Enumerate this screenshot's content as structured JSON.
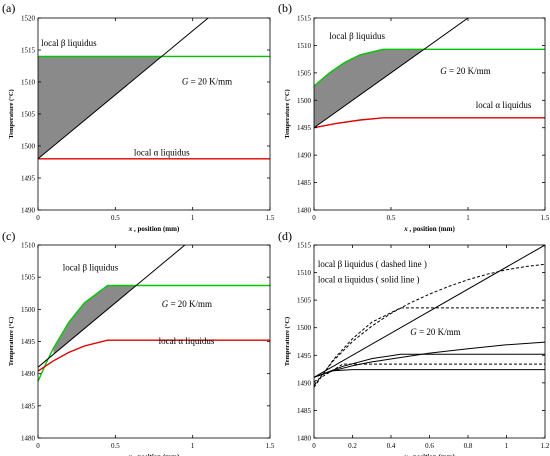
{
  "chart_data": [
    {
      "panel": "(a)",
      "type": "line",
      "ylabel": "Temperature (°C)",
      "xlabel": {
        "var": "x",
        "rest": ", position (mm)"
      },
      "xlim": [
        0,
        1.5
      ],
      "ylim": [
        1490,
        1520
      ],
      "xticks": [
        "0",
        "0.5",
        "1",
        "1.5"
      ],
      "yticks": [
        "1490",
        "1495",
        "1500",
        "1505",
        "1510",
        "1515",
        "1520"
      ],
      "annotations": [
        {
          "text": "local β liquidus",
          "x": 0.02,
          "y": 1515.6
        },
        {
          "text": "= 20 K/mm",
          "italic_prefix": "G",
          "x": 0.93,
          "y": 1509.6
        },
        {
          "text": "local α liquidus",
          "x": 0.62,
          "y": 1498.5
        }
      ],
      "series": [
        {
          "color": "#00c800",
          "x": [
            0,
            1.5
          ],
          "y": [
            1514,
            1514
          ]
        },
        {
          "color": "#e00000",
          "x": [
            0,
            1.5
          ],
          "y": [
            1498,
            1498
          ]
        },
        {
          "color": "#000000",
          "x": [
            0,
            1.5
          ],
          "y": [
            1498,
            1528
          ]
        }
      ],
      "shaded_region": {
        "color": "#8a8a8a",
        "x": [
          0,
          0.8,
          0
        ],
        "y": [
          1514,
          1514,
          1498
        ]
      }
    },
    {
      "panel": "(b)",
      "type": "line",
      "ylabel": "Temperature (°C)",
      "xlabel": {
        "var": "x",
        "rest": ", position (mm)"
      },
      "xlim": [
        0,
        1.5
      ],
      "ylim": [
        1480,
        1515
      ],
      "xticks": [
        "0",
        "0.5",
        "1",
        "1.5"
      ],
      "yticks": [
        "1480",
        "1485",
        "1490",
        "1495",
        "1500",
        "1505",
        "1510",
        "1515"
      ],
      "annotations": [
        {
          "text": "local β liquidus",
          "x": 0.1,
          "y": 1511.2
        },
        {
          "text": "= 20 K/mm",
          "italic_prefix": "G",
          "x": 0.82,
          "y": 1504.8
        },
        {
          "text": "local α liquidus",
          "x": 1.05,
          "y": 1498.6
        }
      ],
      "series": [
        {
          "color": "#00c800",
          "x": [
            0,
            0.1,
            0.2,
            0.3,
            0.45,
            1.5
          ],
          "y": [
            1502.6,
            1505.0,
            1506.9,
            1508.3,
            1509.3,
            1509.3
          ]
        },
        {
          "color": "#e00000",
          "x": [
            0,
            0.15,
            0.3,
            0.45,
            1.5
          ],
          "y": [
            1495.0,
            1495.8,
            1496.4,
            1496.8,
            1496.8
          ]
        },
        {
          "color": "#000000",
          "x": [
            0,
            1.5
          ],
          "y": [
            1495,
            1525
          ]
        }
      ],
      "shaded_region": {
        "color": "#8a8a8a",
        "x": [
          0,
          0.1,
          0.2,
          0.3,
          0.45,
          0.715,
          0
        ],
        "y": [
          1502.6,
          1505.0,
          1506.9,
          1508.3,
          1509.3,
          1509.3,
          1495
        ]
      }
    },
    {
      "panel": "(c)",
      "type": "line",
      "ylabel": "Temperature (°C)",
      "xlabel": {
        "var": "x",
        "rest": ", position (mm)"
      },
      "xlim": [
        0,
        1.5
      ],
      "ylim": [
        1480,
        1510
      ],
      "xticks": [
        "0",
        "0.5",
        "1",
        "1.5"
      ],
      "yticks": [
        "1480",
        "1485",
        "1490",
        "1495",
        "1500",
        "1505",
        "1510"
      ],
      "annotations": [
        {
          "text": "local β liquidus",
          "x": 0.16,
          "y": 1506.0
        },
        {
          "text": "= 20 K/mm",
          "italic_prefix": "G",
          "x": 0.8,
          "y": 1500.4
        },
        {
          "text": "local α liquidus",
          "x": 0.78,
          "y": 1494.6
        }
      ],
      "series": [
        {
          "color": "#00c800",
          "x": [
            0,
            0.05,
            0.1,
            0.2,
            0.3,
            0.45,
            1.5
          ],
          "y": [
            1488.8,
            1491.5,
            1494.0,
            1498.0,
            1501.0,
            1503.7,
            1503.7
          ]
        },
        {
          "color": "#e00000",
          "x": [
            0,
            0.1,
            0.2,
            0.3,
            0.45,
            1.5
          ],
          "y": [
            1490.4,
            1492.0,
            1493.3,
            1494.3,
            1495.2,
            1495.2
          ]
        },
        {
          "color": "#000000",
          "x": [
            0,
            1.5
          ],
          "y": [
            1491,
            1521
          ]
        }
      ],
      "shaded_region": {
        "color": "#8a8a8a",
        "x": [
          0.1,
          0.2,
          0.3,
          0.45,
          0.635,
          0.1
        ],
        "y": [
          1494.0,
          1498.0,
          1501.0,
          1503.7,
          1503.7,
          1493.0
        ]
      }
    },
    {
      "panel": "(d)",
      "type": "line",
      "ylabel": "Temperature (°C)",
      "xlabel": {
        "var": "x",
        "rest": ", position (mm)"
      },
      "xlim": [
        0,
        1.2
      ],
      "ylim": [
        1480,
        1515
      ],
      "xticks": [
        "0",
        "0.2",
        "0.4",
        "0.6",
        "0.8",
        "1",
        "1.2"
      ],
      "yticks": [
        "1480",
        "1485",
        "1490",
        "1495",
        "1500",
        "1505",
        "1510",
        "1515"
      ],
      "annotations": [
        {
          "text": "local β liquidus ( dashed line )",
          "x": 0.02,
          "y": 1511.0
        },
        {
          "text": "local α liquidus ( solid line )",
          "x": 0.02,
          "y": 1508.2
        },
        {
          "text": "= 20 K/mm",
          "italic_prefix": "G",
          "x": 0.5,
          "y": 1498.7
        }
      ],
      "series": [
        {
          "color": "#000000",
          "dash": false,
          "x": [
            0,
            1.2
          ],
          "y": [
            1491,
            1515
          ]
        },
        {
          "color": "#000000",
          "dash": true,
          "x": [
            0,
            0.1,
            0.2,
            0.3,
            0.4,
            0.5,
            0.6,
            0.7,
            0.8,
            0.9,
            1.0,
            1.1,
            1.2
          ],
          "y": [
            1489.5,
            1494.0,
            1497.5,
            1500.3,
            1502.6,
            1504.5,
            1506.1,
            1507.5,
            1508.7,
            1509.7,
            1510.5,
            1511.1,
            1511.5
          ]
        },
        {
          "color": "#000000",
          "dash": true,
          "x": [
            0,
            0.1,
            0.2,
            0.3,
            0.45,
            1.2
          ],
          "y": [
            1489.2,
            1494.2,
            1498.0,
            1501.0,
            1503.6,
            1503.6
          ]
        },
        {
          "color": "#000000",
          "dash": true,
          "x": [
            0,
            0.15,
            1.2
          ],
          "y": [
            1490.2,
            1493.4,
            1493.4
          ]
        },
        {
          "color": "#000000",
          "dash": false,
          "x": [
            0,
            0.1,
            0.2,
            0.3,
            0.45,
            0.6,
            0.8,
            1.0,
            1.2
          ],
          "y": [
            1491.0,
            1492.2,
            1493.1,
            1493.8,
            1494.6,
            1495.4,
            1496.2,
            1496.9,
            1497.4
          ]
        },
        {
          "color": "#000000",
          "dash": false,
          "x": [
            0,
            0.15,
            0.3,
            0.45,
            1.2
          ],
          "y": [
            1491.0,
            1493.0,
            1494.4,
            1495.2,
            1495.2
          ]
        },
        {
          "color": "#000000",
          "dash": false,
          "x": [
            0,
            0.1,
            0.2,
            1.2
          ],
          "y": [
            1491.0,
            1492.2,
            1492.4,
            1492.4
          ]
        }
      ]
    }
  ]
}
